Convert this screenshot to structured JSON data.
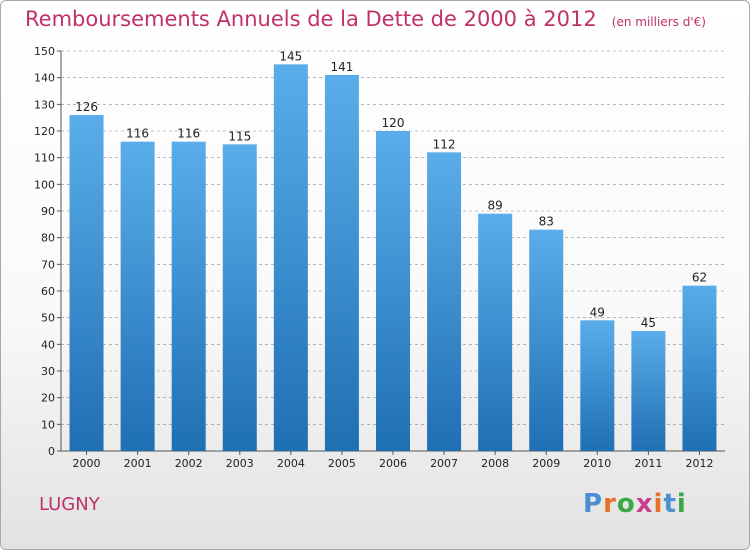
{
  "header": {
    "title": "Remboursements Annuels de la Dette de 2000 à 2012",
    "subtitle": "(en milliers d'€)"
  },
  "commune": "LUGNY",
  "logo": {
    "text": "Proxiti",
    "letter_colors": [
      "#4a8fd1",
      "#e8702a",
      "#3aa845",
      "#cc3f8e",
      "#e8702a",
      "#4a8fd1",
      "#3aa845"
    ]
  },
  "colors": {
    "title": "#c0306a",
    "bar_top": "#5aadea",
    "bar_bottom": "#1f6fb3",
    "grid": "#8a8a8a"
  },
  "chart_data": {
    "type": "bar",
    "title": "Remboursements Annuels de la Dette de 2000 à 2012",
    "xlabel": "",
    "ylabel": "",
    "categories": [
      "2000",
      "2001",
      "2002",
      "2003",
      "2004",
      "2005",
      "2006",
      "2007",
      "2008",
      "2009",
      "2010",
      "2011",
      "2012"
    ],
    "values": [
      126,
      116,
      116,
      115,
      145,
      141,
      120,
      112,
      89,
      83,
      49,
      45,
      62
    ],
    "ylim": [
      0,
      150
    ],
    "yticks": [
      0,
      10,
      20,
      30,
      40,
      50,
      60,
      70,
      80,
      90,
      100,
      110,
      120,
      130,
      140,
      150
    ],
    "grid": true,
    "data_labels": true
  }
}
